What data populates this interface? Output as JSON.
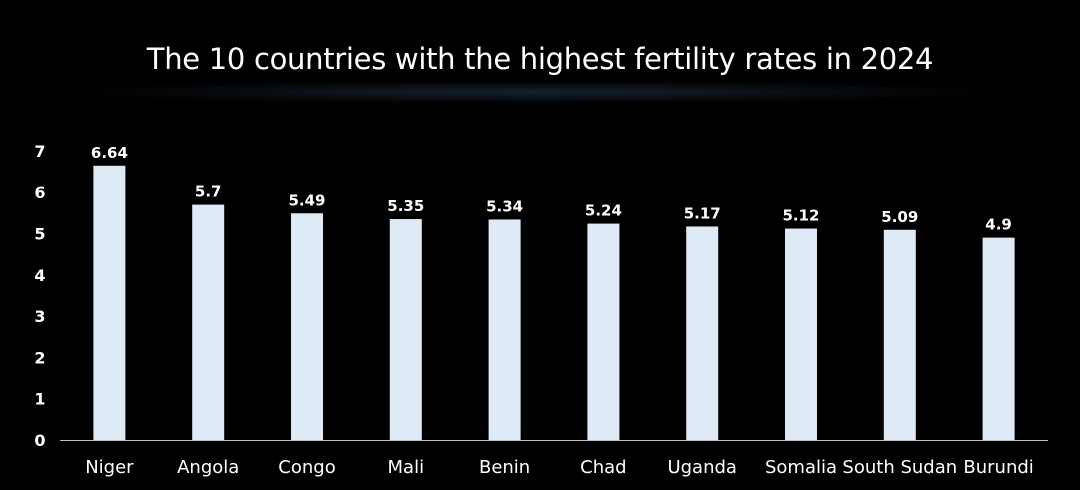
{
  "chart_data": {
    "type": "bar",
    "title": "The 10 countries with the highest fertility rates in 2024",
    "xlabel": "",
    "ylabel": "",
    "categories": [
      "Niger",
      "Angola",
      "Congo",
      "Mali",
      "Benin",
      "Chad",
      "Uganda",
      "Somalia",
      "South Sudan",
      "Burundi"
    ],
    "values": [
      6.64,
      5.7,
      5.49,
      5.35,
      5.34,
      5.24,
      5.17,
      5.12,
      5.09,
      4.9
    ],
    "data_labels": [
      "6.64",
      "5.7",
      "5.49",
      "5.35",
      "5.34",
      "5.24",
      "5.17",
      "5.12",
      "5.09",
      "4.9"
    ],
    "yticks": [
      "0",
      "1",
      "2",
      "3",
      "4",
      "5",
      "6",
      "7"
    ],
    "ylim": [
      0,
      7
    ],
    "grid": false,
    "legend": "none",
    "colors": {
      "background": "#000000",
      "bar": "#deebf7",
      "text": "#ffffff",
      "axis": "#bfbfbf"
    }
  }
}
